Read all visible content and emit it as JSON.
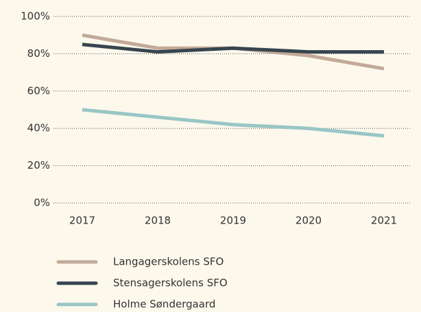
{
  "chart_data": {
    "type": "line",
    "categories": [
      "2017",
      "2018",
      "2019",
      "2020",
      "2021"
    ],
    "series": [
      {
        "name": "Langagerskolens SFO",
        "color": "#c3aa98",
        "values": [
          90,
          83,
          83,
          79,
          72
        ]
      },
      {
        "name": "Stensagerskolens SFO",
        "color": "#36454f",
        "values": [
          85,
          81,
          83,
          81,
          81
        ]
      },
      {
        "name": "Holme Søndergaard",
        "color": "#98c6c5",
        "values": [
          50,
          46,
          42,
          40,
          36
        ]
      }
    ],
    "ylim": [
      0,
      100
    ],
    "yticks": [
      {
        "value": 0,
        "label": "0%"
      },
      {
        "value": 20,
        "label": "20%"
      },
      {
        "value": 40,
        "label": "40%"
      },
      {
        "value": 60,
        "label": "60%"
      },
      {
        "value": 80,
        "label": "80%"
      },
      {
        "value": 100,
        "label": "100%"
      }
    ],
    "grid": true,
    "legend": "bottom"
  }
}
